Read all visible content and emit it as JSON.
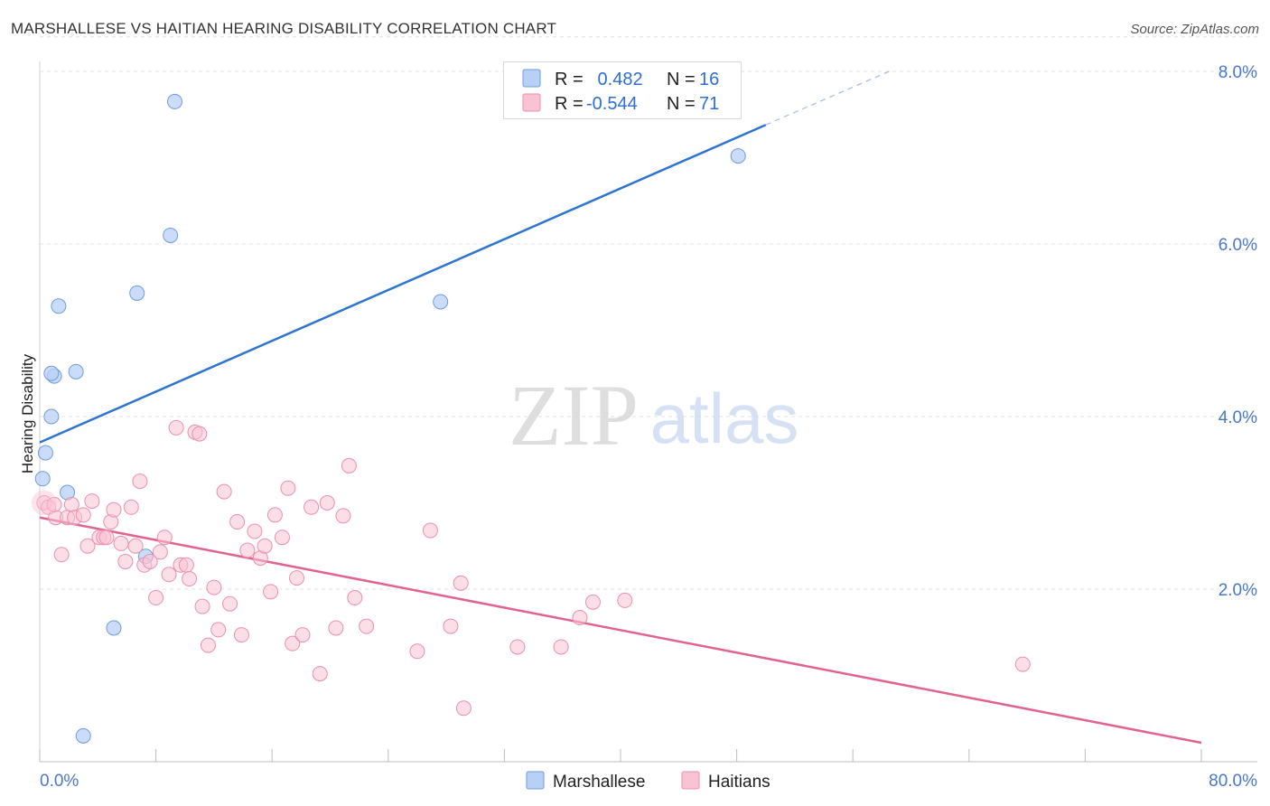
{
  "header": {
    "title": "MARSHALLESE VS HAITIAN HEARING DISABILITY CORRELATION CHART",
    "source": "Source: ZipAtlas.com"
  },
  "watermark": {
    "zip": "ZIP",
    "atlas": "atlas"
  },
  "legend": {
    "rows": [
      {
        "r_label": "R =",
        "r_value": " 0.482",
        "n_label": "N =",
        "n_value": "16"
      },
      {
        "r_label": "R =",
        "r_value": "-0.544",
        "n_label": "N =",
        "n_value": "71"
      }
    ]
  },
  "colors": {
    "marshallese_fill": "#b8d0f5",
    "marshallese_stroke": "#6f9be0",
    "marshallese_line": "#2f74d0",
    "haitians_fill": "#f9c3d4",
    "haitians_stroke": "#eb8fae",
    "haitians_line": "#e2638f",
    "tick_text": "#4a78c8"
  },
  "chart_data": {
    "type": "scatter",
    "title": "MARSHALLESE VS HAITIAN HEARING DISABILITY CORRELATION CHART",
    "xlabel": "",
    "ylabel": "Hearing Disability",
    "xlim": [
      0,
      80
    ],
    "ylim": [
      0,
      8.4
    ],
    "x_tick_labels": [
      "0.0%",
      "80.0%"
    ],
    "y_ticks": [
      2,
      4,
      6,
      8
    ],
    "y_tick_labels": [
      "2.0%",
      "4.0%",
      "6.0%",
      "8.0%"
    ],
    "grid": true,
    "legend_position": "top-center",
    "series": [
      {
        "name": "Marshallese",
        "points": [
          [
            9.3,
            7.65
          ],
          [
            9.0,
            6.1
          ],
          [
            6.7,
            5.43
          ],
          [
            1.3,
            5.28
          ],
          [
            1.0,
            4.47
          ],
          [
            2.5,
            4.52
          ],
          [
            0.8,
            4.5
          ],
          [
            0.8,
            4.0
          ],
          [
            0.4,
            3.58
          ],
          [
            0.2,
            3.28
          ],
          [
            1.9,
            3.12
          ],
          [
            7.3,
            2.38
          ],
          [
            5.1,
            1.55
          ],
          [
            3.0,
            0.3
          ],
          [
            27.6,
            5.33
          ],
          [
            48.1,
            7.02
          ]
        ],
        "trend": {
          "x0": 0,
          "y0": 3.7,
          "x1": 50,
          "y1": 7.38,
          "dashed_to_x": 58.5,
          "dashed_to_y": 8.0
        }
      },
      {
        "name": "Haitians",
        "points": [
          [
            0.3,
            3.0
          ],
          [
            0.6,
            2.95
          ],
          [
            1.1,
            2.83
          ],
          [
            1.5,
            2.4
          ],
          [
            1.9,
            2.83
          ],
          [
            2.2,
            2.98
          ],
          [
            2.4,
            2.83
          ],
          [
            3.0,
            2.86
          ],
          [
            3.3,
            2.5
          ],
          [
            3.6,
            3.02
          ],
          [
            4.1,
            2.6
          ],
          [
            4.4,
            2.6
          ],
          [
            4.9,
            2.78
          ],
          [
            5.1,
            2.92
          ],
          [
            5.6,
            2.53
          ],
          [
            5.9,
            2.32
          ],
          [
            6.3,
            2.95
          ],
          [
            6.6,
            2.5
          ],
          [
            6.9,
            3.25
          ],
          [
            7.2,
            2.28
          ],
          [
            7.6,
            2.32
          ],
          [
            8.0,
            1.9
          ],
          [
            8.3,
            2.43
          ],
          [
            8.6,
            2.6
          ],
          [
            8.9,
            2.17
          ],
          [
            9.4,
            3.87
          ],
          [
            9.7,
            2.28
          ],
          [
            10.1,
            2.28
          ],
          [
            10.3,
            2.12
          ],
          [
            10.7,
            3.82
          ],
          [
            11.0,
            3.8
          ],
          [
            11.2,
            1.8
          ],
          [
            11.6,
            1.35
          ],
          [
            12.0,
            2.02
          ],
          [
            12.3,
            1.53
          ],
          [
            12.7,
            3.13
          ],
          [
            13.1,
            1.83
          ],
          [
            13.6,
            2.78
          ],
          [
            13.9,
            1.47
          ],
          [
            14.3,
            2.45
          ],
          [
            14.8,
            2.67
          ],
          [
            15.2,
            2.36
          ],
          [
            15.5,
            2.5
          ],
          [
            15.9,
            1.97
          ],
          [
            16.2,
            2.86
          ],
          [
            16.7,
            2.6
          ],
          [
            17.1,
            3.17
          ],
          [
            17.4,
            1.37
          ],
          [
            17.7,
            2.13
          ],
          [
            18.1,
            1.47
          ],
          [
            18.7,
            2.95
          ],
          [
            19.3,
            1.02
          ],
          [
            19.8,
            3.0
          ],
          [
            20.4,
            1.55
          ],
          [
            20.9,
            2.85
          ],
          [
            21.3,
            3.43
          ],
          [
            21.7,
            1.9
          ],
          [
            22.5,
            1.57
          ],
          [
            26.0,
            1.28
          ],
          [
            26.9,
            2.68
          ],
          [
            28.3,
            1.57
          ],
          [
            29.0,
            2.07
          ],
          [
            29.2,
            0.62
          ],
          [
            32.9,
            1.33
          ],
          [
            35.9,
            1.33
          ],
          [
            37.2,
            1.67
          ],
          [
            38.1,
            1.85
          ],
          [
            40.3,
            1.87
          ],
          [
            67.7,
            1.13
          ],
          [
            1.0,
            2.98
          ],
          [
            4.6,
            2.6
          ]
        ],
        "trend": {
          "x0": 0,
          "y0": 2.83,
          "x1": 80,
          "y1": 0.22
        }
      }
    ]
  },
  "bottom_legend": {
    "items": [
      "Marshallese",
      "Haitians"
    ]
  }
}
